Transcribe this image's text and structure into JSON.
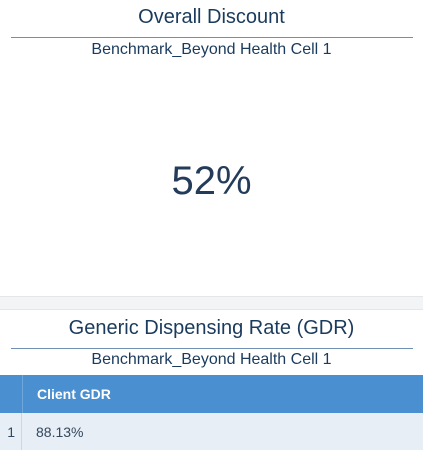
{
  "discount_card": {
    "title": "Overall Discount",
    "subtitle": "Benchmark_Beyond Health Cell 1",
    "value": "52%"
  },
  "gdr_card": {
    "title": "Generic Dispensing Rate (GDR)",
    "subtitle": "Benchmark_Beyond Health Cell 1",
    "table": {
      "columns": [
        "",
        "Client GDR"
      ],
      "rows": [
        [
          "1",
          "88.13%"
        ]
      ]
    }
  }
}
